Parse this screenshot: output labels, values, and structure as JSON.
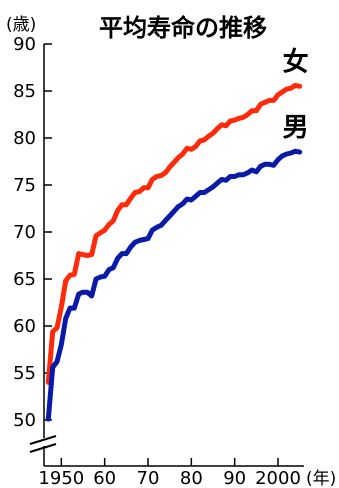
{
  "chart_data": {
    "type": "line",
    "title": "平均寿命の推移",
    "ylabel": "(歳)",
    "xlabel": "(年)",
    "ylim": [
      50,
      90
    ],
    "xlim": [
      1946,
      2006
    ],
    "y_ticks": [
      90,
      85,
      80,
      75,
      70,
      65,
      60,
      55,
      50
    ],
    "y_tick_labels": [
      "90",
      "85",
      "80",
      "75",
      "70",
      "65",
      "60",
      "55",
      "50"
    ],
    "x_ticks": [
      1950,
      1960,
      1970,
      1980,
      1990,
      2000
    ],
    "x_tick_labels": [
      "1950",
      "60",
      "70",
      "80",
      "90",
      "2000"
    ],
    "y_axis_break": true,
    "grid": false,
    "legend": "none",
    "series": [
      {
        "name": "女",
        "color": "#ff2a0a",
        "points": [
          [
            1947,
            54.0
          ],
          [
            1948,
            59.4
          ],
          [
            1949,
            59.8
          ],
          [
            1950,
            62.0
          ],
          [
            1951,
            64.8
          ],
          [
            1952,
            65.4
          ],
          [
            1953,
            65.5
          ],
          [
            1954,
            67.7
          ],
          [
            1955,
            67.6
          ],
          [
            1956,
            67.5
          ],
          [
            1957,
            67.6
          ],
          [
            1958,
            69.6
          ],
          [
            1959,
            69.9
          ],
          [
            1960,
            70.2
          ],
          [
            1961,
            70.8
          ],
          [
            1962,
            71.2
          ],
          [
            1963,
            72.3
          ],
          [
            1964,
            72.9
          ],
          [
            1965,
            72.9
          ],
          [
            1966,
            73.6
          ],
          [
            1967,
            74.2
          ],
          [
            1968,
            74.3
          ],
          [
            1969,
            74.7
          ],
          [
            1970,
            74.7
          ],
          [
            1971,
            75.6
          ],
          [
            1972,
            75.9
          ],
          [
            1973,
            76.0
          ],
          [
            1974,
            76.3
          ],
          [
            1975,
            76.9
          ],
          [
            1976,
            77.4
          ],
          [
            1977,
            77.9
          ],
          [
            1978,
            78.3
          ],
          [
            1979,
            78.9
          ],
          [
            1980,
            78.8
          ],
          [
            1981,
            79.1
          ],
          [
            1982,
            79.7
          ],
          [
            1983,
            79.8
          ],
          [
            1984,
            80.2
          ],
          [
            1985,
            80.5
          ],
          [
            1986,
            81.0
          ],
          [
            1987,
            81.4
          ],
          [
            1988,
            81.3
          ],
          [
            1989,
            81.8
          ],
          [
            1990,
            81.9
          ],
          [
            1991,
            82.1
          ],
          [
            1992,
            82.2
          ],
          [
            1993,
            82.5
          ],
          [
            1994,
            82.9
          ],
          [
            1995,
            82.9
          ],
          [
            1996,
            83.6
          ],
          [
            1997,
            83.8
          ],
          [
            1998,
            84.0
          ],
          [
            1999,
            84.0
          ],
          [
            2000,
            84.6
          ],
          [
            2001,
            84.9
          ],
          [
            2002,
            85.2
          ],
          [
            2003,
            85.3
          ],
          [
            2004,
            85.6
          ],
          [
            2005,
            85.5
          ]
        ]
      },
      {
        "name": "男",
        "color": "#0a1aa8",
        "points": [
          [
            1947,
            50.1
          ],
          [
            1948,
            55.6
          ],
          [
            1949,
            56.2
          ],
          [
            1950,
            58.0
          ],
          [
            1951,
            60.8
          ],
          [
            1952,
            61.9
          ],
          [
            1953,
            61.9
          ],
          [
            1954,
            63.4
          ],
          [
            1955,
            63.6
          ],
          [
            1956,
            63.6
          ],
          [
            1957,
            63.2
          ],
          [
            1958,
            65.0
          ],
          [
            1959,
            65.2
          ],
          [
            1960,
            65.3
          ],
          [
            1961,
            66.0
          ],
          [
            1962,
            66.2
          ],
          [
            1963,
            67.2
          ],
          [
            1964,
            67.7
          ],
          [
            1965,
            67.7
          ],
          [
            1966,
            68.4
          ],
          [
            1967,
            68.9
          ],
          [
            1968,
            69.1
          ],
          [
            1969,
            69.2
          ],
          [
            1970,
            69.3
          ],
          [
            1971,
            70.2
          ],
          [
            1972,
            70.5
          ],
          [
            1973,
            70.7
          ],
          [
            1974,
            71.2
          ],
          [
            1975,
            71.7
          ],
          [
            1976,
            72.2
          ],
          [
            1977,
            72.7
          ],
          [
            1978,
            73.0
          ],
          [
            1979,
            73.5
          ],
          [
            1980,
            73.4
          ],
          [
            1981,
            73.8
          ],
          [
            1982,
            74.2
          ],
          [
            1983,
            74.2
          ],
          [
            1984,
            74.5
          ],
          [
            1985,
            74.8
          ],
          [
            1986,
            75.2
          ],
          [
            1987,
            75.6
          ],
          [
            1988,
            75.5
          ],
          [
            1989,
            75.9
          ],
          [
            1990,
            75.9
          ],
          [
            1991,
            76.1
          ],
          [
            1992,
            76.1
          ],
          [
            1993,
            76.3
          ],
          [
            1994,
            76.6
          ],
          [
            1995,
            76.4
          ],
          [
            1996,
            77.0
          ],
          [
            1997,
            77.2
          ],
          [
            1998,
            77.2
          ],
          [
            1999,
            77.1
          ],
          [
            2000,
            77.7
          ],
          [
            2001,
            78.1
          ],
          [
            2002,
            78.3
          ],
          [
            2003,
            78.4
          ],
          [
            2004,
            78.6
          ],
          [
            2005,
            78.5
          ]
        ]
      }
    ]
  }
}
